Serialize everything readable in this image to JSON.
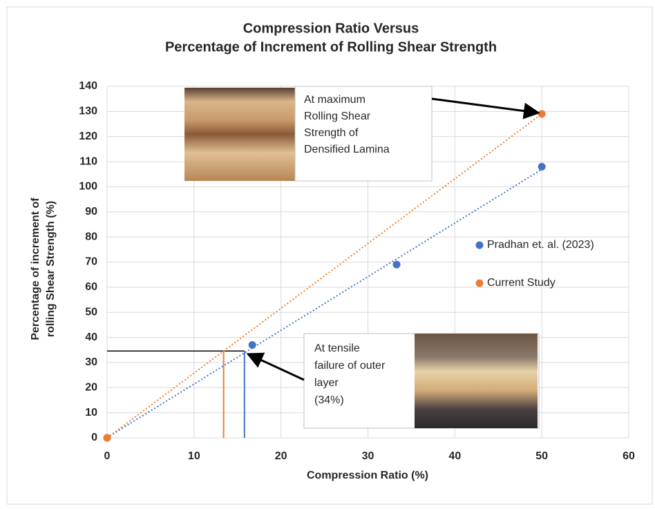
{
  "chart_data": {
    "type": "scatter",
    "title": [
      "Compression Ratio Versus",
      "Percentage of Increment of Rolling Shear Strength"
    ],
    "x_label": "Compression Ratio (%)",
    "y_label": [
      "Percentage of increment of",
      "rolling Shear Strength (%)"
    ],
    "xlim": [
      0,
      60
    ],
    "xticks": [
      0,
      10,
      20,
      30,
      40,
      50,
      60
    ],
    "ylim": [
      0,
      140
    ],
    "yticks": [
      0,
      10,
      20,
      30,
      40,
      50,
      60,
      70,
      80,
      90,
      100,
      110,
      120,
      130,
      140
    ],
    "grid": true,
    "legend": "right",
    "trendline": "linear",
    "series": [
      {
        "name": "Pradhan et. al. (2023)",
        "color": "#4472c4",
        "x": [
          0,
          16.7,
          33.3,
          50
        ],
        "values": [
          0,
          37,
          69,
          108
        ]
      },
      {
        "name": "Current Study",
        "color": "#ed7d31",
        "x": [
          0,
          50
        ],
        "values": [
          0,
          129
        ]
      }
    ],
    "reference": {
      "y": 34.6,
      "x": [
        {
          "value": 15.8,
          "color": "#4472c4"
        },
        {
          "value": 13.4,
          "color": "#ed7d31"
        }
      ]
    },
    "annotations": [
      {
        "lines": [
          "At maximum",
          "Rolling Shear",
          "Strength of",
          "Densified Lamina"
        ]
      },
      {
        "lines": [
          "At tensile",
          "failure of outer",
          "layer",
          "(34%)"
        ]
      }
    ]
  }
}
